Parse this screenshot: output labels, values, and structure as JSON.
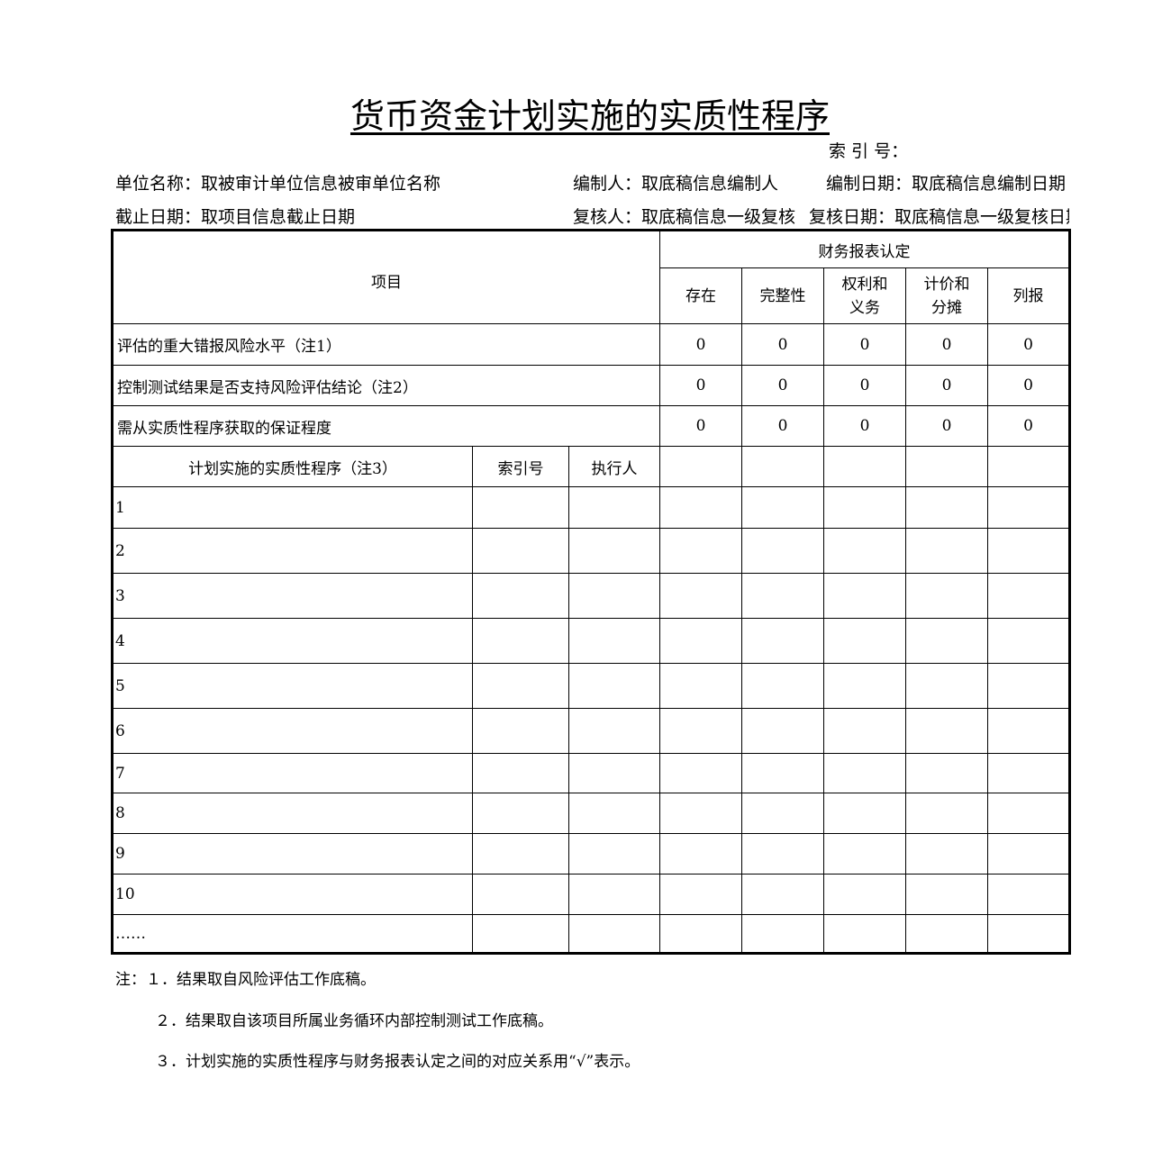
{
  "title": "货币资金计划实施的实质性程序",
  "index_label": "索 引 号：",
  "unit_name": "单位名称：取被审计单位信息被审单位名称",
  "preparer": "编制人：取底稿信息编制人",
  "prepare_date": "编制日期：取底稿信息编制日期",
  "cutoff_date": "截止日期：取项目信息截止日期",
  "reviewer": "复核人：取底稿信息一级复核",
  "review_date": "复核日期：取底稿信息一级复核日期",
  "table": {
    "item_header": "项目",
    "assertion_header": "财务报表认定",
    "assertions": [
      "存在",
      "完整性",
      "权利和\n义务",
      "计价和\n分摊",
      "列报"
    ],
    "eval_rows": [
      {
        "label": "评估的重大错报风险水平（注1）",
        "values": [
          "0",
          "0",
          "0",
          "0",
          "0"
        ]
      },
      {
        "label": "控制测试结果是否支持风险评估结论（注2）",
        "values": [
          "0",
          "0",
          "0",
          "0",
          "0"
        ]
      },
      {
        "label": "需从实质性程序获取的保证程度",
        "values": [
          "0",
          "0",
          "0",
          "0",
          "0"
        ]
      }
    ],
    "procedure_header": "计划实施的实质性程序（注3）",
    "index_col": "索引号",
    "executor_col": "执行人",
    "procedures": [
      "1",
      "2",
      "3",
      "4",
      "5",
      "6",
      "7",
      "8",
      "9",
      "10",
      "……"
    ]
  },
  "notes": [
    "注：１．结果取自风险评估工作底稿。",
    "２．结果取自该项目所属业务循环内部控制测试工作底稿。",
    "３．计划实施的实质性程序与财务报表认定之间的对应关系用“√”表示。"
  ]
}
